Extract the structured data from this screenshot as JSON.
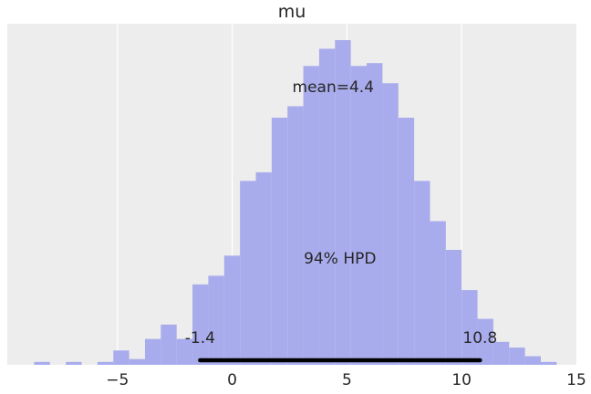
{
  "chart_data": {
    "type": "histogram",
    "title": "mu",
    "xlabel": "",
    "ylabel": "",
    "xlim": [
      -9.8,
      15
    ],
    "xticks": [
      -5,
      0,
      5,
      10,
      15
    ],
    "xtick_labels": [
      "−5",
      "0",
      "5",
      "10",
      "15"
    ],
    "y_axis_visible": false,
    "grid": true,
    "bar_color": "#a9acec",
    "background_color": "#ededed",
    "hpd_line_color": "#000000",
    "bin_width": 0.69,
    "bin_lefts": [
      -8.63,
      -7.25,
      -5.87,
      -5.18,
      -4.49,
      -3.8,
      -3.11,
      -2.42,
      -1.73,
      -1.04,
      -0.35,
      0.34,
      1.03,
      1.72,
      2.41,
      3.1,
      3.79,
      4.48,
      5.17,
      5.86,
      6.55,
      7.24,
      7.93,
      8.62,
      9.31,
      10.0,
      10.69,
      11.38,
      12.07,
      12.76,
      13.45
    ],
    "counts": [
      1,
      1,
      1,
      5,
      2,
      9,
      14,
      9,
      28,
      31,
      38,
      64,
      67,
      86,
      90,
      104,
      110,
      113,
      104,
      105,
      98,
      86,
      64,
      50,
      40,
      26,
      16,
      8,
      6,
      3,
      1
    ],
    "mean_label": "mean=4.4",
    "mean": 4.4,
    "hpd_label": "94% HPD",
    "hpd_low": -1.4,
    "hpd_high": 10.8,
    "hpd_low_label": "-1.4",
    "hpd_high_label": "10.8"
  }
}
